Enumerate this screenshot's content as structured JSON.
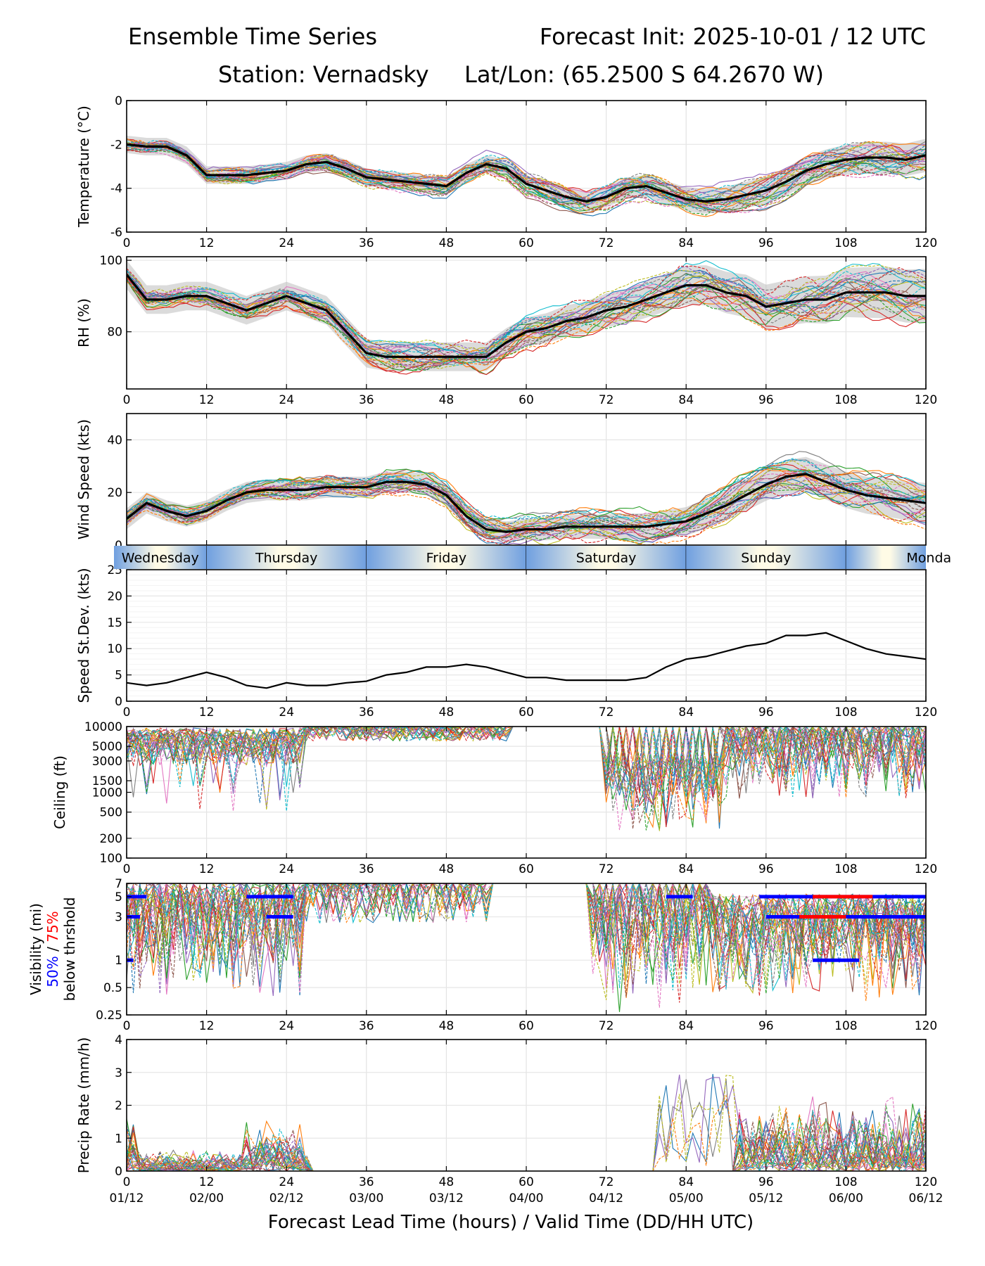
{
  "header": {
    "title_left": "Ensemble Time Series",
    "title_right": "Forecast Init: 2025-10-01 / 12 UTC",
    "station": "Station: Vernadsky",
    "latlon": "Lat/Lon: (65.2500 S 64.2670 W)"
  },
  "xlabel": "Forecast Lead Time (hours) / Valid Time (DD/HH UTC)",
  "lead_ticks": [
    "0",
    "12",
    "24",
    "36",
    "48",
    "60",
    "72",
    "84",
    "96",
    "108",
    "120"
  ],
  "valid_ticks": [
    "01/12",
    "02/00",
    "02/12",
    "03/00",
    "03/12",
    "04/00",
    "04/12",
    "05/00",
    "05/12",
    "06/00",
    "06/12"
  ],
  "day_band": [
    "Wednesday",
    "Thursday",
    "Friday",
    "Saturday",
    "Sunday",
    "Monda"
  ],
  "colors": {
    "mean": "#000000",
    "spread": "#bdbdbd",
    "threshold_50": "#0000ff",
    "threshold_75": "#ff0000",
    "members": [
      "#1f77b4",
      "#ff7f0e",
      "#2ca02c",
      "#d62728",
      "#9467bd",
      "#8c564b",
      "#e377c2",
      "#7f7f7f",
      "#bcbd22",
      "#17becf"
    ]
  },
  "chart_data": [
    {
      "type": "line",
      "name": "temperature",
      "ylabel": "Temperature (°C)",
      "ylim": [
        -6,
        0
      ],
      "yticks": [
        "-6",
        "-4",
        "-2",
        "0"
      ],
      "x": [
        0,
        3,
        6,
        9,
        12,
        15,
        18,
        21,
        24,
        27,
        30,
        33,
        36,
        39,
        42,
        45,
        48,
        51,
        54,
        57,
        60,
        63,
        66,
        69,
        72,
        75,
        78,
        81,
        84,
        87,
        90,
        93,
        96,
        99,
        102,
        105,
        108,
        111,
        114,
        117,
        120
      ],
      "mean": [
        -2.0,
        -2.1,
        -2.1,
        -2.5,
        -3.4,
        -3.4,
        -3.4,
        -3.3,
        -3.2,
        -2.9,
        -2.8,
        -3.1,
        -3.5,
        -3.6,
        -3.7,
        -3.8,
        -3.9,
        -3.3,
        -2.9,
        -3.1,
        -3.8,
        -4.1,
        -4.4,
        -4.6,
        -4.4,
        -4.0,
        -3.9,
        -4.2,
        -4.5,
        -4.6,
        -4.5,
        -4.3,
        -4.1,
        -3.7,
        -3.2,
        -2.9,
        -2.7,
        -2.6,
        -2.6,
        -2.7,
        -2.5
      ],
      "spread": 0.4
    },
    {
      "type": "line",
      "name": "relative-humidity",
      "ylabel": "RH (%)",
      "ylim": [
        64,
        101
      ],
      "yticks": [
        "80",
        "100"
      ],
      "x": [
        0,
        3,
        6,
        9,
        12,
        15,
        18,
        21,
        24,
        27,
        30,
        33,
        36,
        39,
        42,
        45,
        48,
        51,
        54,
        57,
        60,
        63,
        66,
        69,
        72,
        75,
        78,
        81,
        84,
        87,
        90,
        93,
        96,
        99,
        102,
        105,
        108,
        111,
        114,
        117,
        120
      ],
      "mean": [
        96,
        89,
        89,
        90,
        90,
        88,
        86,
        88,
        90,
        88,
        86,
        80,
        74,
        73,
        73,
        73,
        73,
        73,
        73,
        77,
        80,
        81,
        83,
        84,
        86,
        87,
        89,
        91,
        93,
        93,
        91,
        90,
        87,
        88,
        89,
        89,
        91,
        91,
        91,
        90,
        90
      ],
      "spread": 4
    },
    {
      "type": "line",
      "name": "wind-speed",
      "ylabel": "Wind Speed (kts)",
      "ylim": [
        0,
        50
      ],
      "yticks": [
        "0",
        "20",
        "40"
      ],
      "x": [
        0,
        3,
        6,
        9,
        12,
        15,
        18,
        21,
        24,
        27,
        30,
        33,
        36,
        39,
        42,
        45,
        48,
        51,
        54,
        57,
        60,
        63,
        66,
        69,
        72,
        75,
        78,
        81,
        84,
        87,
        90,
        93,
        96,
        99,
        102,
        105,
        108,
        111,
        114,
        117,
        120
      ],
      "mean": [
        10,
        16,
        13,
        11,
        13,
        17,
        20,
        21,
        21,
        21,
        22,
        22,
        22,
        24,
        24,
        23,
        19,
        11,
        6,
        5,
        6,
        6,
        7,
        7,
        7,
        7,
        7,
        8,
        9,
        12,
        15,
        19,
        23,
        26,
        27,
        24,
        21,
        19,
        18,
        17,
        16
      ],
      "spread": 4
    },
    {
      "type": "line",
      "name": "speed-stdev",
      "ylabel": "Speed St.Dev. (kts)",
      "ylim": [
        0,
        25
      ],
      "yticks": [
        "0",
        "5",
        "10",
        "15",
        "20",
        "25"
      ],
      "x": [
        0,
        3,
        6,
        9,
        12,
        15,
        18,
        21,
        24,
        27,
        30,
        33,
        36,
        39,
        42,
        45,
        48,
        51,
        54,
        57,
        60,
        63,
        66,
        69,
        72,
        75,
        78,
        81,
        84,
        87,
        90,
        93,
        96,
        99,
        102,
        105,
        108,
        111,
        114,
        117,
        120
      ],
      "values": [
        3.5,
        3.0,
        3.5,
        4.5,
        5.5,
        4.5,
        3.0,
        2.5,
        3.5,
        3.0,
        3.0,
        3.5,
        3.8,
        5.0,
        5.5,
        6.5,
        6.5,
        7.0,
        6.5,
        5.5,
        4.5,
        4.5,
        4.0,
        4.0,
        4.0,
        4.0,
        4.5,
        6.5,
        8.0,
        8.5,
        9.5,
        10.5,
        11.0,
        12.5,
        12.5,
        13.0,
        11.5,
        10.0,
        9.0,
        8.5,
        8.0
      ]
    },
    {
      "type": "line",
      "name": "ceiling",
      "ylabel": "Ceiling (ft)",
      "scale": "log",
      "ylim": [
        100,
        10000
      ],
      "yticks": [
        "100",
        "200",
        "500",
        "1000",
        "1500",
        "3000",
        "5000",
        "10000"
      ]
    },
    {
      "type": "line",
      "name": "visibility",
      "ylabel": "Visibility (mi)",
      "ylabel_line2a": "50%",
      "ylabel_line2b": " / ",
      "ylabel_line2c": "75%",
      "ylabel_line3": "below thrshold",
      "scale": "log",
      "ylim": [
        0.25,
        7
      ],
      "yticks": [
        "0.25",
        "0.5",
        "1",
        "3",
        "5",
        "7"
      ],
      "threshold_50": [
        {
          "level": 5,
          "segments": [
            [
              0,
              3
            ],
            [
              18,
              25
            ],
            [
              81,
              85
            ],
            [
              95,
              120
            ]
          ]
        },
        {
          "level": 3,
          "segments": [
            [
              0,
              2
            ],
            [
              21,
              25
            ],
            [
              96,
              120
            ]
          ]
        },
        {
          "level": 1,
          "segments": [
            [
              0,
              1
            ],
            [
              103,
              110
            ]
          ]
        }
      ],
      "threshold_75": [
        {
          "level": 5,
          "segments": [
            [
              103,
              112
            ]
          ]
        },
        {
          "level": 3,
          "segments": [
            [
              101,
              108
            ]
          ]
        }
      ]
    },
    {
      "type": "line",
      "name": "precip-rate",
      "ylabel": "Precip Rate (mm/h)",
      "ylim": [
        0,
        4
      ],
      "yticks": [
        "0",
        "1",
        "2",
        "3",
        "4"
      ]
    }
  ]
}
